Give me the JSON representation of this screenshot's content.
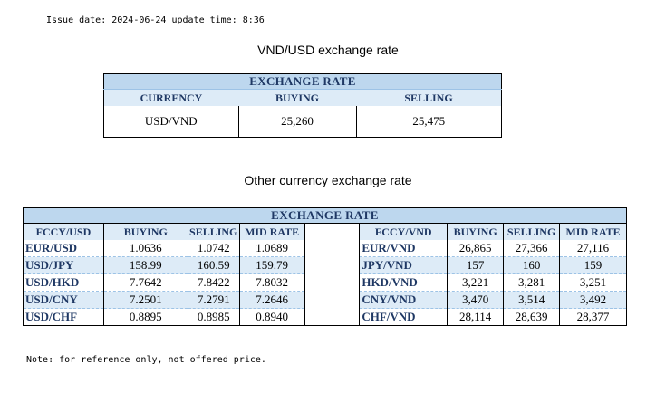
{
  "issue_line": "Issue date: 2024-06-24 update time: 8:36",
  "title_vnd_usd": "VND/USD exchange rate",
  "table1": {
    "header": "EXCHANGE RATE",
    "columns": [
      "CURRENCY",
      "BUYING",
      "SELLING"
    ],
    "row": {
      "currency": "USD/VND",
      "buying": "25,260",
      "selling": "25,475"
    }
  },
  "title_other": "Other currency exchange rate",
  "table2": {
    "header": "EXCHANGE  RATE",
    "left_columns": [
      "FCCY/USD",
      "BUYING",
      "SELLING",
      "MID RATE"
    ],
    "right_columns": [
      "FCCY/VND",
      "BUYING",
      "SELLING",
      "MID RATE"
    ],
    "rows": [
      {
        "pair": "EUR/USD",
        "buying": "1.0636",
        "selling": "1.0742",
        "mid": "1.0689",
        "vnd_pair": "EUR/VND",
        "vnd_buying": "26,865",
        "vnd_selling": "27,366",
        "vnd_mid": "27,116"
      },
      {
        "pair": "USD/JPY",
        "buying": "158.99",
        "selling": "160.59",
        "mid": "159.79",
        "vnd_pair": "JPY/VND",
        "vnd_buying": "157",
        "vnd_selling": "160",
        "vnd_mid": "159"
      },
      {
        "pair": "USD/HKD",
        "buying": "7.7642",
        "selling": "7.8422",
        "mid": "7.8032",
        "vnd_pair": "HKD/VND",
        "vnd_buying": "3,221",
        "vnd_selling": "3,281",
        "vnd_mid": "3,251"
      },
      {
        "pair": "USD/CNY",
        "buying": "7.2501",
        "selling": "7.2791",
        "mid": "7.2646",
        "vnd_pair": "CNY/VND",
        "vnd_buying": "3,470",
        "vnd_selling": "3,514",
        "vnd_mid": "3,492"
      },
      {
        "pair": "USD/CHF",
        "buying": "0.8895",
        "selling": "0.8985",
        "mid": "0.8940",
        "vnd_pair": "CHF/VND",
        "vnd_buying": "28,114",
        "vnd_selling": "28,639",
        "vnd_mid": "28,377"
      }
    ]
  },
  "note": "Note: for reference only, not offered price.",
  "colors": {
    "header_fill": "#bdd7ee",
    "band_fill": "#ddebf7",
    "header_text": "#1f3864"
  }
}
